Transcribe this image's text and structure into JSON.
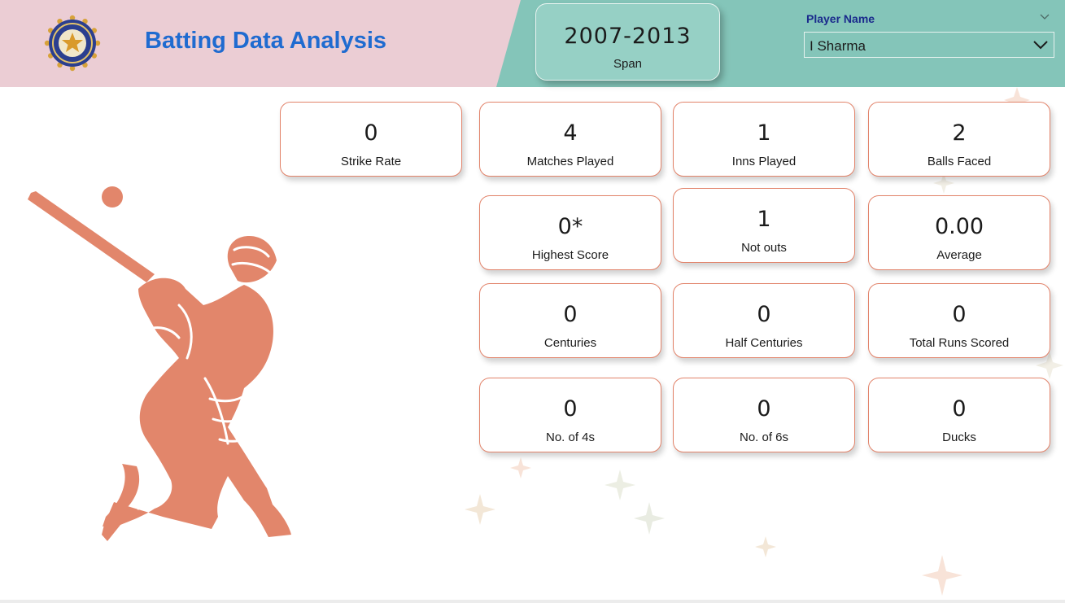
{
  "header": {
    "title": "Batting Data Analysis",
    "logo_icon": "bcci-crest-icon",
    "colors": {
      "pink": "#ebcdd4",
      "teal": "#84c5b9",
      "title": "#1f6bd0",
      "accent": "#e2836a"
    }
  },
  "span_card": {
    "value": "2007-2013",
    "label": "Span"
  },
  "slicer": {
    "label": "Player Name",
    "selected": "I Sharma"
  },
  "kpis": [
    {
      "value": "0",
      "label": "Strike Rate"
    },
    {
      "value": "4",
      "label": "Matches Played"
    },
    {
      "value": "1",
      "label": "Inns Played"
    },
    {
      "value": "2",
      "label": "Balls Faced"
    },
    {
      "value": "0*",
      "label": "Highest Score"
    },
    {
      "value": "1",
      "label": "Not outs"
    },
    {
      "value": "0.00",
      "label": "Average"
    },
    {
      "value": "0",
      "label": "Centuries"
    },
    {
      "value": "0",
      "label": "Half Centuries"
    },
    {
      "value": "0",
      "label": "Total Runs Scored"
    },
    {
      "value": "0",
      "label": "No. of 4s"
    },
    {
      "value": "0",
      "label": "No. of 6s"
    },
    {
      "value": "0",
      "label": "Ducks"
    }
  ]
}
